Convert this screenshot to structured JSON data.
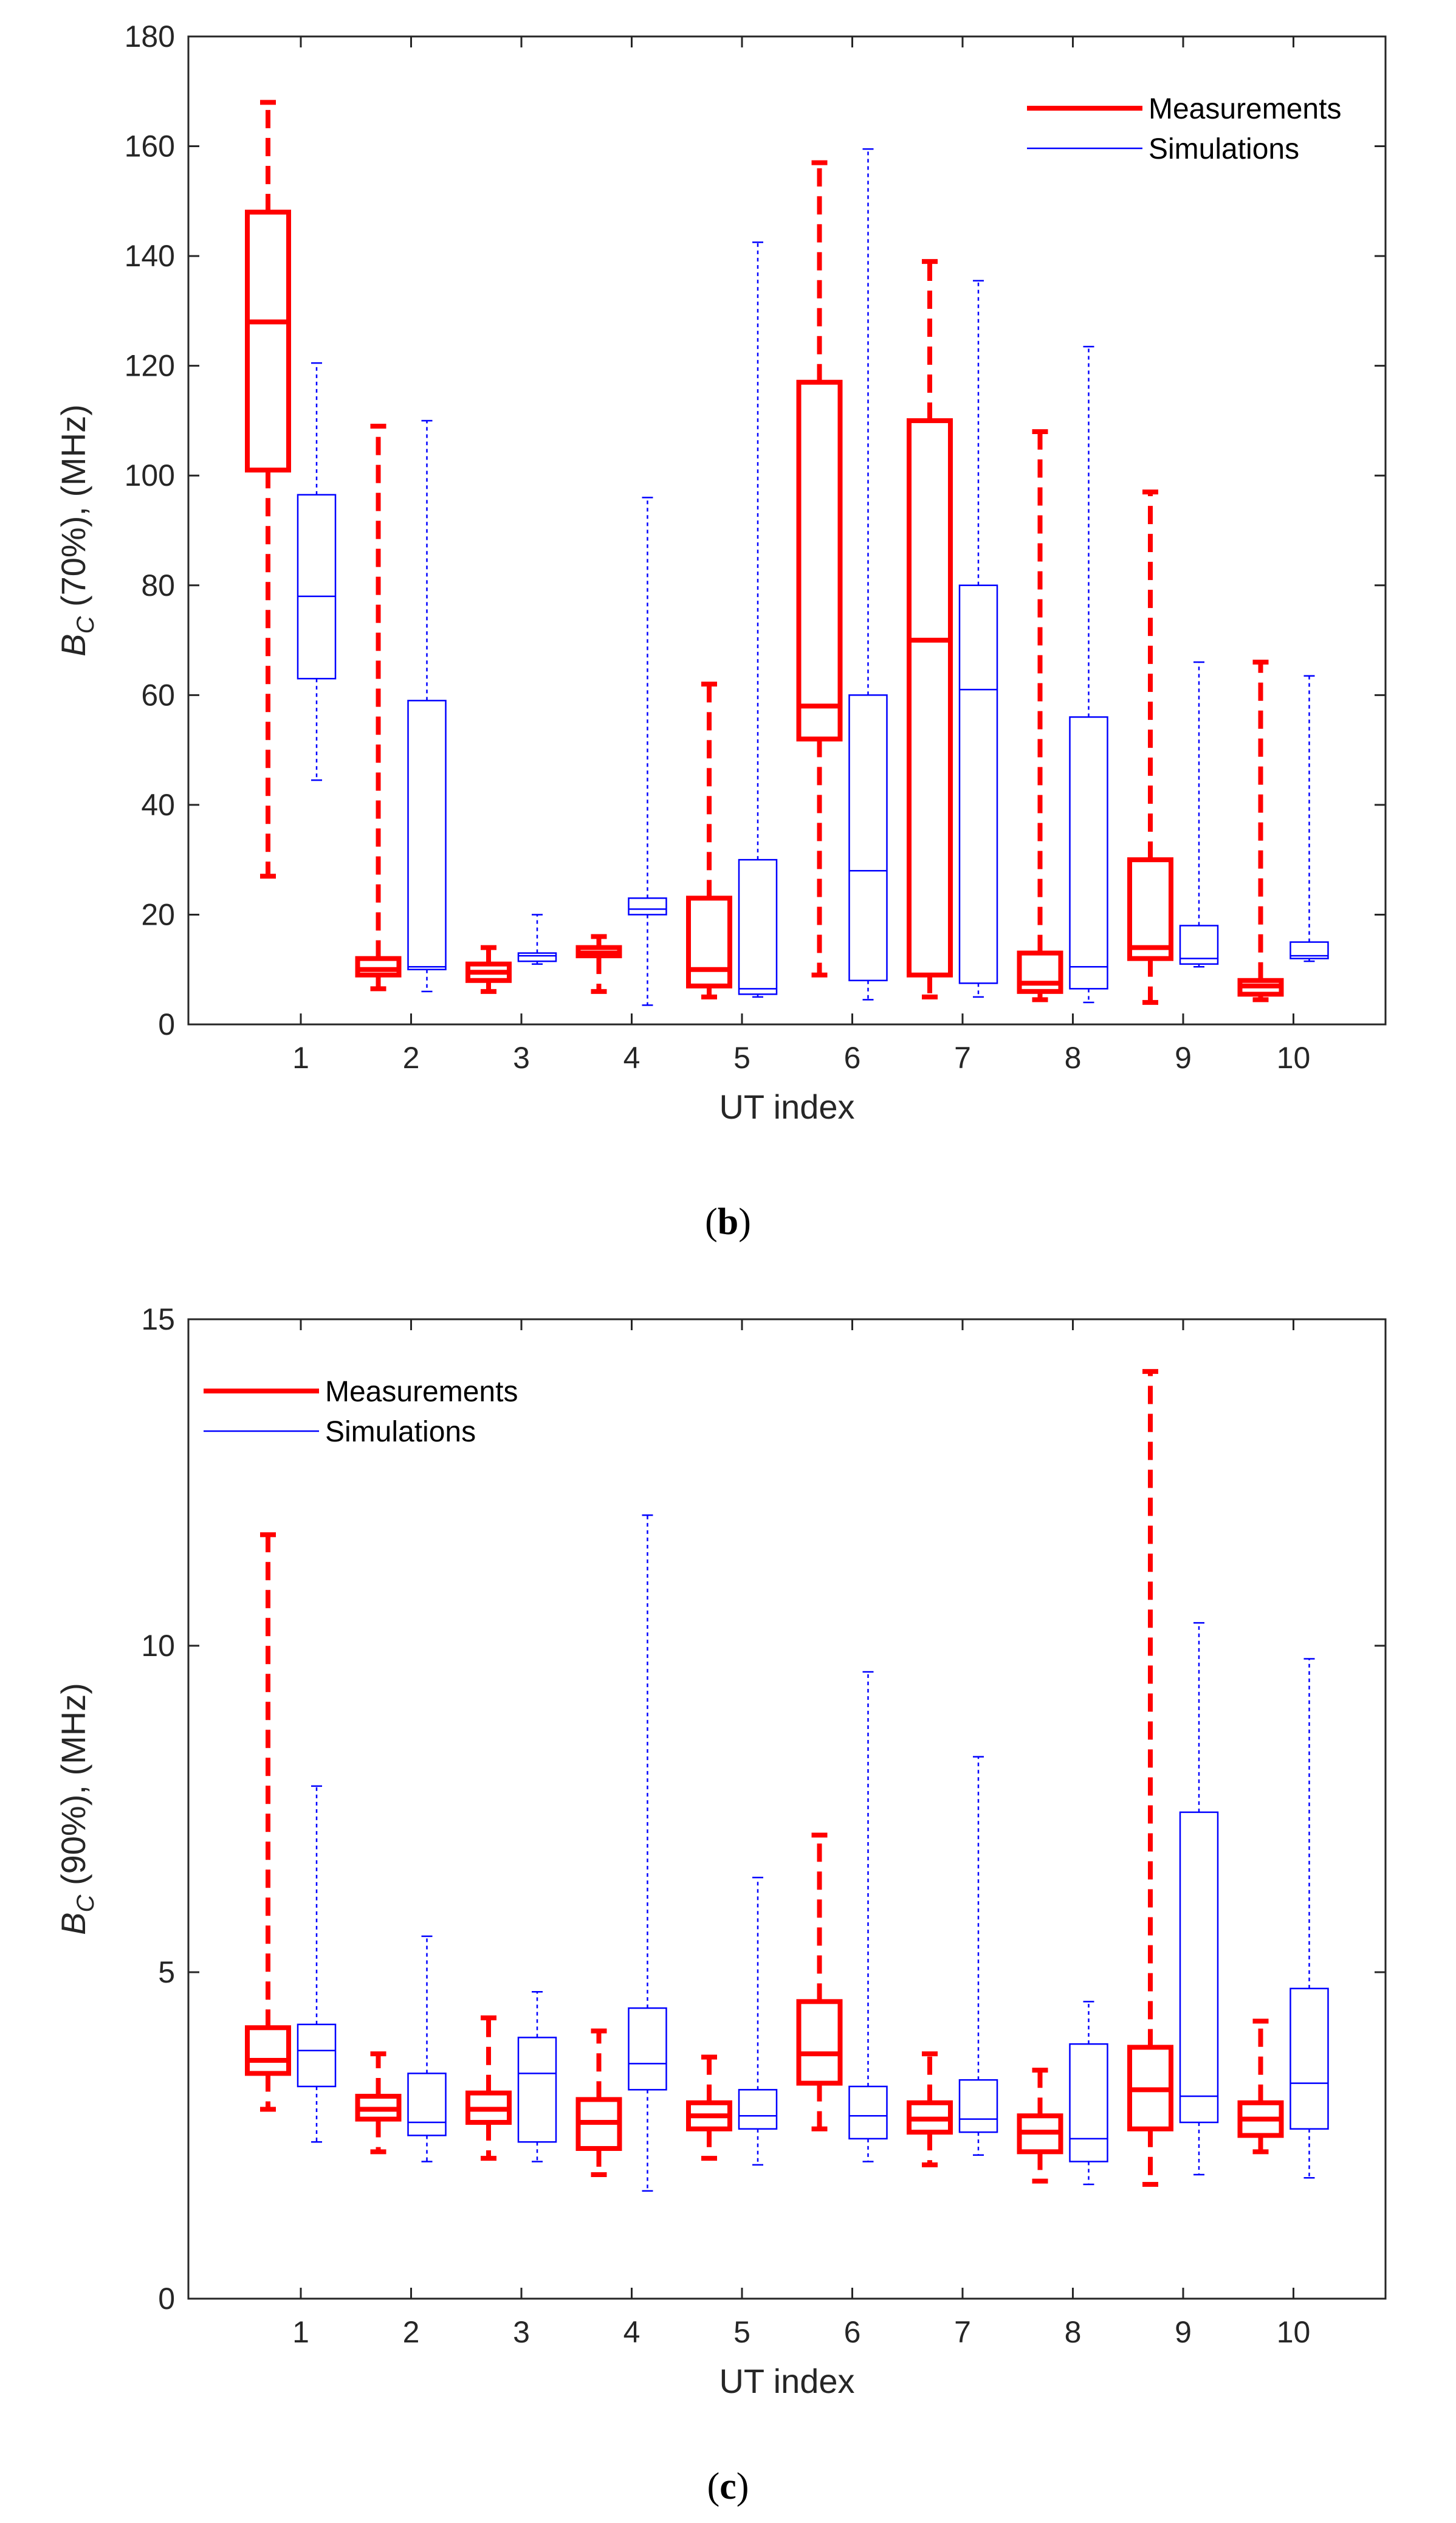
{
  "chart_data": [
    {
      "type": "box",
      "panel_label": "b",
      "ylabel_symbol": "B",
      "ylabel_subscript": "C",
      "ylabel_rest": " (70%), (MHz)",
      "xlabel": "UT index",
      "categories": [
        "1",
        "2",
        "3",
        "4",
        "5",
        "6",
        "7",
        "8",
        "9",
        "10"
      ],
      "ylim": [
        0,
        180
      ],
      "yticks": [
        0,
        20,
        40,
        60,
        80,
        100,
        120,
        140,
        160,
        180
      ],
      "legend_position": "top-right",
      "colors": {
        "measurements": "#ff0000",
        "simulations": "#0000ff"
      },
      "series": [
        {
          "name": "Measurements",
          "boxes": [
            {
              "min": 27,
              "q1": 101,
              "median": 128,
              "q3": 148,
              "max": 168
            },
            {
              "min": 6.5,
              "q1": 9,
              "median": 10,
              "q3": 12,
              "max": 109
            },
            {
              "min": 6,
              "q1": 8,
              "median": 9.5,
              "q3": 11,
              "max": 14
            },
            {
              "min": 6,
              "q1": 12.5,
              "median": 13,
              "q3": 14,
              "max": 16
            },
            {
              "min": 5,
              "q1": 7,
              "median": 10,
              "q3": 23,
              "max": 62
            },
            {
              "min": 9,
              "q1": 52,
              "median": 58,
              "q3": 117,
              "max": 157
            },
            {
              "min": 5,
              "q1": 9,
              "median": 70,
              "q3": 110,
              "max": 139
            },
            {
              "min": 4.5,
              "q1": 6,
              "median": 7.5,
              "q3": 13,
              "max": 108
            },
            {
              "min": 4,
              "q1": 12,
              "median": 14,
              "q3": 30,
              "max": 97
            },
            {
              "min": 4.5,
              "q1": 5.5,
              "median": 7,
              "q3": 8,
              "max": 66
            }
          ]
        },
        {
          "name": "Simulations",
          "boxes": [
            {
              "min": 44.5,
              "q1": 63,
              "median": 78,
              "q3": 96.5,
              "max": 120.5
            },
            {
              "min": 6,
              "q1": 10,
              "median": 10.5,
              "q3": 59,
              "max": 110
            },
            {
              "min": 11,
              "q1": 11.5,
              "median": 12.5,
              "q3": 13,
              "max": 20
            },
            {
              "min": 3.5,
              "q1": 20,
              "median": 21,
              "q3": 23,
              "max": 96
            },
            {
              "min": 5,
              "q1": 5.5,
              "median": 6.5,
              "q3": 30,
              "max": 142.5
            },
            {
              "min": 4.5,
              "q1": 8,
              "median": 28,
              "q3": 60,
              "max": 159.5
            },
            {
              "min": 5,
              "q1": 7.5,
              "median": 61,
              "q3": 80,
              "max": 135.5
            },
            {
              "min": 4,
              "q1": 6.5,
              "median": 10.5,
              "q3": 56,
              "max": 123.5
            },
            {
              "min": 10.5,
              "q1": 11,
              "median": 12,
              "q3": 18,
              "max": 66
            },
            {
              "min": 11.5,
              "q1": 12,
              "median": 12.5,
              "q3": 15,
              "max": 63.5
            }
          ]
        }
      ]
    },
    {
      "type": "box",
      "panel_label": "c",
      "ylabel_symbol": "B",
      "ylabel_subscript": "C",
      "ylabel_rest": " (90%), (MHz)",
      "xlabel": "UT index",
      "categories": [
        "1",
        "2",
        "3",
        "4",
        "5",
        "6",
        "7",
        "8",
        "9",
        "10"
      ],
      "ylim": [
        0,
        15
      ],
      "yticks": [
        0,
        5,
        10,
        15
      ],
      "legend_position": "top-left",
      "colors": {
        "measurements": "#ff0000",
        "simulations": "#0000ff"
      },
      "series": [
        {
          "name": "Measurements",
          "boxes": [
            {
              "min": 2.9,
              "q1": 3.45,
              "median": 3.65,
              "q3": 4.15,
              "max": 11.7
            },
            {
              "min": 2.25,
              "q1": 2.75,
              "median": 2.9,
              "q3": 3.1,
              "max": 3.75
            },
            {
              "min": 2.15,
              "q1": 2.7,
              "median": 2.9,
              "q3": 3.15,
              "max": 4.3
            },
            {
              "min": 1.9,
              "q1": 2.3,
              "median": 2.7,
              "q3": 3.05,
              "max": 4.1
            },
            {
              "min": 2.15,
              "q1": 2.6,
              "median": 2.8,
              "q3": 3.0,
              "max": 3.7
            },
            {
              "min": 2.6,
              "q1": 3.3,
              "median": 3.75,
              "q3": 4.55,
              "max": 7.1
            },
            {
              "min": 2.05,
              "q1": 2.55,
              "median": 2.75,
              "q3": 3.0,
              "max": 3.75
            },
            {
              "min": 1.8,
              "q1": 2.25,
              "median": 2.55,
              "q3": 2.8,
              "max": 3.5
            },
            {
              "min": 1.75,
              "q1": 2.6,
              "median": 3.2,
              "q3": 3.85,
              "max": 14.2
            },
            {
              "min": 2.25,
              "q1": 2.5,
              "median": 2.75,
              "q3": 3.0,
              "max": 4.25
            }
          ]
        },
        {
          "name": "Simulations",
          "boxes": [
            {
              "min": 2.4,
              "q1": 3.25,
              "median": 3.8,
              "q3": 4.2,
              "max": 7.85
            },
            {
              "min": 2.1,
              "q1": 2.5,
              "median": 2.7,
              "q3": 3.45,
              "max": 5.55
            },
            {
              "min": 2.1,
              "q1": 2.4,
              "median": 3.45,
              "q3": 4.0,
              "max": 4.7
            },
            {
              "min": 1.65,
              "q1": 3.2,
              "median": 3.6,
              "q3": 4.45,
              "max": 12.0
            },
            {
              "min": 2.05,
              "q1": 2.6,
              "median": 2.8,
              "q3": 3.2,
              "max": 6.45
            },
            {
              "min": 2.1,
              "q1": 2.45,
              "median": 2.8,
              "q3": 3.25,
              "max": 9.6
            },
            {
              "min": 2.2,
              "q1": 2.55,
              "median": 2.75,
              "q3": 3.35,
              "max": 8.3
            },
            {
              "min": 1.75,
              "q1": 2.1,
              "median": 2.45,
              "q3": 3.9,
              "max": 4.55
            },
            {
              "min": 1.9,
              "q1": 2.7,
              "median": 3.1,
              "q3": 7.45,
              "max": 10.35
            },
            {
              "min": 1.85,
              "q1": 2.6,
              "median": 3.3,
              "q3": 4.75,
              "max": 9.8
            }
          ]
        }
      ]
    }
  ]
}
